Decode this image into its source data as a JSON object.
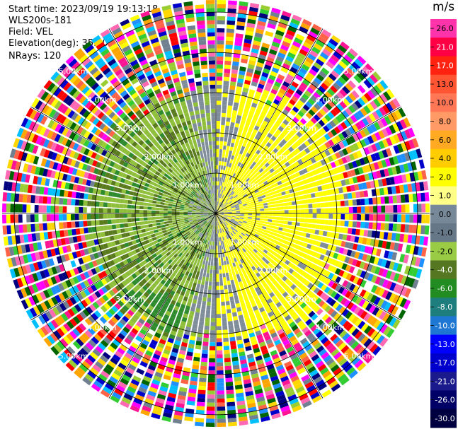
{
  "header": {
    "start_time": "Start time: 2023/09/19 19:13:18",
    "instrument": "WLS200s-181",
    "field": "Field: VEL",
    "elevation": "Elevation(deg): 35.30",
    "nrays": "NRays: 120"
  },
  "chart_data": {
    "type": "heatmap",
    "plot_kind": "PPI radial velocity",
    "nrays": 120,
    "range_rings_km": [
      1,
      2,
      3,
      4,
      5
    ],
    "range_ring_labels": [
      "1.00km",
      "2.00km",
      "3.00km",
      "4.00km",
      "5.00km"
    ],
    "ring_label_bearings_deg": [
      45,
      135,
      225,
      315
    ],
    "max_range_km": 5.3,
    "colorbar": {
      "unit": "m/s",
      "tick_labels": [
        "26.0",
        "21.0",
        "17.0",
        "13.0",
        "10.0",
        "8.0",
        "6.0",
        "4.0",
        "2.0",
        "1.0",
        "0.0",
        "-1.0",
        "-2.0",
        "-4.0",
        "-6.0",
        "-8.0",
        "-10.0",
        "-13.0",
        "-17.0",
        "-21.0",
        "-26.0",
        "-30.0"
      ],
      "colors": [
        "#ff33aa",
        "#ff0044",
        "#ff2211",
        "#ff5533",
        "#ff7755",
        "#ff9966",
        "#ffaa22",
        "#ffcc00",
        "#ffff00",
        "#ffff88",
        "#778899",
        "#667788",
        "#99cc44",
        "#557722",
        "#228b22",
        "#1e7e7e",
        "#1f77d4",
        "#0000ff",
        "#0000cc",
        "#1a1a8c",
        "#000066",
        "#000040"
      ]
    },
    "colors": {
      "near_range_positive": "#ffff00",
      "near_range_zero": "#7f8c9a",
      "near_range_negative_light": "#8fbf3a",
      "near_range_negative_dark": "#5a7a1e",
      "near_range_strong_negative": "#2e8b2e",
      "far_range_noise_palette": [
        "#ff1493",
        "#ff00ff",
        "#0000cd",
        "#000080",
        "#00bfff",
        "#ff0000",
        "#ff6347",
        "#ffd700",
        "#32cd32",
        "#006400",
        "#ffa500",
        "#708090",
        "#ff69b4",
        "#1e90ff",
        "#ffff00",
        "#9acd32"
      ]
    },
    "velocity_pattern": {
      "positive_sector_deg": [
        0,
        180
      ],
      "negative_sector_deg": [
        180,
        360
      ],
      "coherent_range_km": 3.2,
      "noise_start_km": 3.2
    }
  }
}
